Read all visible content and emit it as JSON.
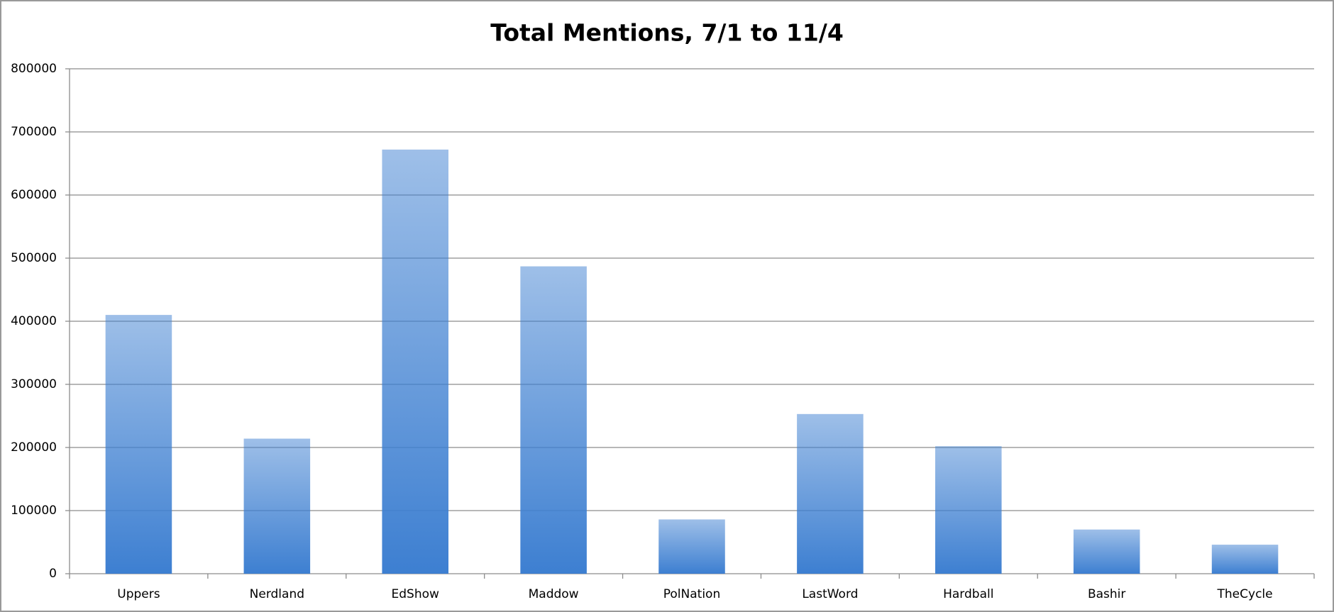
{
  "chart_data": {
    "type": "bar",
    "title": "Total Mentions, 7/1 to 11/4",
    "categories": [
      "Uppers",
      "Nerdland",
      "EdShow",
      "Maddow",
      "PolNation",
      "LastWord",
      "Hardball",
      "Bashir",
      "TheCycle"
    ],
    "values": [
      410000,
      214000,
      672000,
      487000,
      86000,
      253000,
      202000,
      70000,
      46000
    ],
    "color": "#3d7fd1",
    "ylim": [
      0,
      800000
    ],
    "yticks": [
      0,
      100000,
      200000,
      300000,
      400000,
      500000,
      600000,
      700000,
      800000
    ],
    "grid": true
  }
}
